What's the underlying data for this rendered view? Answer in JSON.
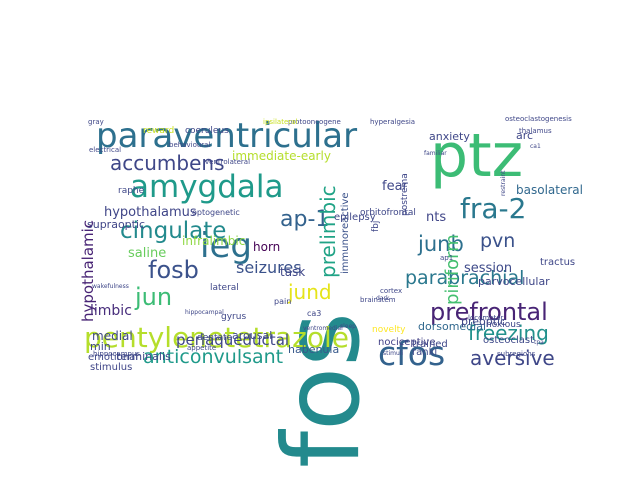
{
  "words": [
    {
      "text": "fos",
      "color": "#238a8d"
    },
    {
      "text": "ptz",
      "color": "#3cbc75"
    },
    {
      "text": "paraventricular",
      "color": "#2d708e"
    },
    {
      "text": "amygdala",
      "color": "#1f9a8a"
    },
    {
      "text": "ieg",
      "color": "#2d708e"
    },
    {
      "text": "pentylenetetrazole",
      "color": "#b5de2b"
    },
    {
      "text": "cfos",
      "color": "#33628d"
    },
    {
      "text": "accumbens",
      "color": "#3f4788"
    },
    {
      "text": "fra-2",
      "color": "#2a788e"
    },
    {
      "text": "cingulate",
      "color": "#238a8d"
    },
    {
      "text": "fosb",
      "color": "#3b528b"
    },
    {
      "text": "jun",
      "color": "#3cbc75"
    },
    {
      "text": "ap-1",
      "color": "#33628d"
    },
    {
      "text": "prelimbic",
      "color": "#20a386"
    },
    {
      "text": "junb",
      "color": "#2d708e"
    },
    {
      "text": "pvn",
      "color": "#3b528b"
    },
    {
      "text": "jund",
      "color": "#e5e419"
    },
    {
      "text": "parabrachial",
      "color": "#2a788e"
    },
    {
      "text": "prefrontal",
      "color": "#482475"
    },
    {
      "text": "freezing",
      "color": "#21918c"
    },
    {
      "text": "aversive",
      "color": "#3f4788"
    },
    {
      "text": "anticonvulsant",
      "color": "#1f9a8a"
    },
    {
      "text": "periaqueductal",
      "color": "#3f4788"
    },
    {
      "text": "piriform",
      "color": "#44bf70"
    },
    {
      "text": "hypothalamic",
      "color": "#482475"
    },
    {
      "text": "seizures",
      "color": "#3b528b"
    },
    {
      "text": "limbic",
      "color": "#472d7b"
    },
    {
      "text": "fear",
      "color": "#3f4788"
    },
    {
      "text": "nts",
      "color": "#404688"
    },
    {
      "text": "session",
      "color": "#3e4a89"
    },
    {
      "text": "basolateral",
      "color": "#31688e"
    },
    {
      "text": "immediate-early",
      "color": "#b5de2b"
    },
    {
      "text": "hypothalamus",
      "color": "#404688"
    },
    {
      "text": "infralimbic",
      "color": "#8fd744"
    },
    {
      "text": "saline",
      "color": "#67cc5c"
    },
    {
      "text": "horn",
      "color": "#440154"
    },
    {
      "text": "arousal",
      "color": "#3e4989"
    },
    {
      "text": "habenula",
      "color": "#38598c"
    },
    {
      "text": "dorsomedial",
      "color": "#31688e"
    },
    {
      "text": "immunoreactive",
      "color": "#3b528b"
    },
    {
      "text": "supraoptic",
      "color": "#404688"
    },
    {
      "text": "terminalis",
      "color": "#3f4788"
    },
    {
      "text": "nociceptive",
      "color": "#424086"
    },
    {
      "text": "rankl",
      "color": "#3e4989"
    },
    {
      "text": "osteoclast",
      "color": "#3e4989"
    },
    {
      "text": "medial",
      "color": "#3f4788"
    },
    {
      "text": "min",
      "color": "#3f4788"
    },
    {
      "text": "stimulus",
      "color": "#404688"
    },
    {
      "text": "emotional",
      "color": "#3f4788"
    },
    {
      "text": "anxiety",
      "color": "#3f4788"
    },
    {
      "text": "arc",
      "color": "#3f4788"
    },
    {
      "text": "task",
      "color": "#3f4788"
    },
    {
      "text": "trained",
      "color": "#3f4788"
    },
    {
      "text": "preoptic",
      "color": "#3f4788"
    },
    {
      "text": "novelty",
      "color": "#fde725"
    },
    {
      "text": "raphe",
      "color": "#3f4788"
    },
    {
      "text": "optogenetic",
      "color": "#3f4788"
    },
    {
      "text": "dentate",
      "color": "#3f4788"
    },
    {
      "text": "gyrus",
      "color": "#3f4788"
    },
    {
      "text": "reward",
      "color": "#c8e020"
    },
    {
      "text": "coeruleus",
      "color": "#3f4788"
    },
    {
      "text": "protooncogene",
      "color": "#3f4788"
    },
    {
      "text": "hyperalgesia",
      "color": "#3f4788"
    },
    {
      "text": "osteoclastogenesis",
      "color": "#3f4788"
    },
    {
      "text": "thalamus",
      "color": "#3f4788"
    },
    {
      "text": "orbitofrontal",
      "color": "#3f4788"
    },
    {
      "text": "epilepsy",
      "color": "#3f4788"
    },
    {
      "text": "fbj",
      "color": "#3f4788"
    },
    {
      "text": "postrema",
      "color": "#3f4788"
    },
    {
      "text": "parvocellular",
      "color": "#3f4788"
    },
    {
      "text": "tractus",
      "color": "#3f4788"
    },
    {
      "text": "noxious",
      "color": "#3f4788"
    },
    {
      "text": "subregions",
      "color": "#3f4788"
    },
    {
      "text": "locomotor",
      "color": "#3f4788"
    },
    {
      "text": "lateral",
      "color": "#3f4788"
    },
    {
      "text": "ca3",
      "color": "#3f4788"
    },
    {
      "text": "pain",
      "color": "#3f4788"
    },
    {
      "text": "brainstem",
      "color": "#3f4788"
    },
    {
      "text": "cortex",
      "color": "#3f4788"
    },
    {
      "text": "ap1",
      "color": "#3f4788"
    },
    {
      "text": "behavioural",
      "color": "#3f4788"
    },
    {
      "text": "ventrolateral",
      "color": "#3f4788"
    },
    {
      "text": "electrical",
      "color": "#3f4788"
    },
    {
      "text": "gray",
      "color": "#3f4788"
    },
    {
      "text": "ipsilateral",
      "color": "#c8e020"
    },
    {
      "text": "restraint",
      "color": "#3f4788"
    },
    {
      "text": "hippocampus",
      "color": "#3f4788"
    },
    {
      "text": "appetite",
      "color": "#3f4788"
    },
    {
      "text": "wakefulness",
      "color": "#3f4788"
    },
    {
      "text": "hippocampal",
      "color": "#3f4788"
    },
    {
      "text": "ventromedial",
      "color": "#3f4788"
    },
    {
      "text": "stimuli",
      "color": "#3f4788"
    },
    {
      "text": "tpa",
      "color": "#3f4788"
    },
    {
      "text": "familiar",
      "color": "#3f4788"
    },
    {
      "text": "ca1",
      "color": "#3f4788"
    },
    {
      "text": "sleep",
      "color": "#3f4788"
    },
    {
      "text": "dark",
      "color": "#3f4788"
    },
    {
      "text": "mrna",
      "color": "#3f4788"
    }
  ]
}
